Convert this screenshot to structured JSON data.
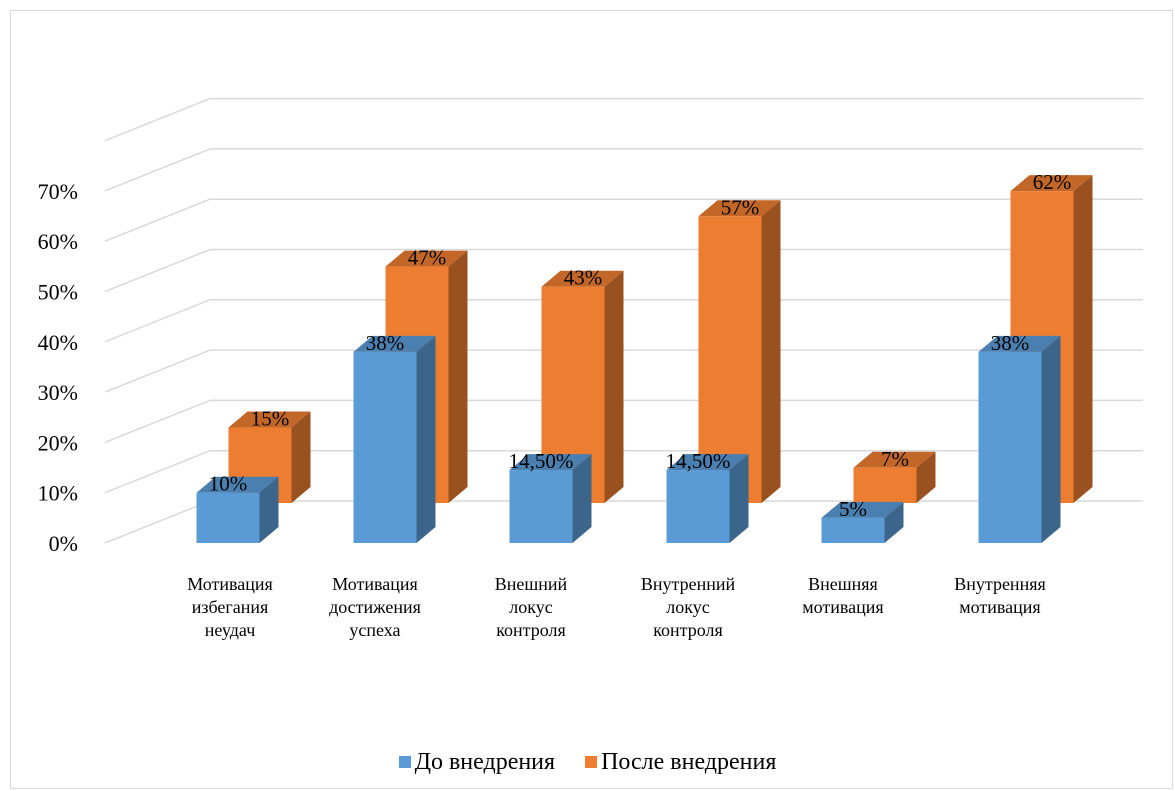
{
  "chart_data": {
    "type": "bar",
    "categories": [
      [
        "Мотивация",
        "избегания",
        "неудач"
      ],
      [
        "Мотивация",
        "достижения",
        "успеха"
      ],
      [
        "Внешний",
        "локус",
        "контроля"
      ],
      [
        "Внутренний",
        "локус",
        "контроля"
      ],
      [
        "Внешняя",
        "мотивация"
      ],
      [
        "Внутренняя",
        "мотивация"
      ]
    ],
    "series": [
      {
        "name": "До внедрения",
        "color": "#5b9bd5",
        "values": [
          10,
          38,
          14.5,
          14.5,
          5,
          38
        ],
        "labels": [
          "10%",
          "38%",
          "14,50%",
          "14,50%",
          "5%",
          "38%"
        ]
      },
      {
        "name": "После внедрения",
        "color": "#ed7d31",
        "values": [
          15,
          47,
          43,
          57,
          7,
          62
        ],
        "labels": [
          "15%",
          "47%",
          "43%",
          "57%",
          "7%",
          "62%"
        ]
      }
    ],
    "ylim": [
      0,
      70
    ],
    "yticks": [
      "0%",
      "10%",
      "20%",
      "30%",
      "40%",
      "50%",
      "60%",
      "70%"
    ],
    "grid": true,
    "legend": "bottom"
  }
}
